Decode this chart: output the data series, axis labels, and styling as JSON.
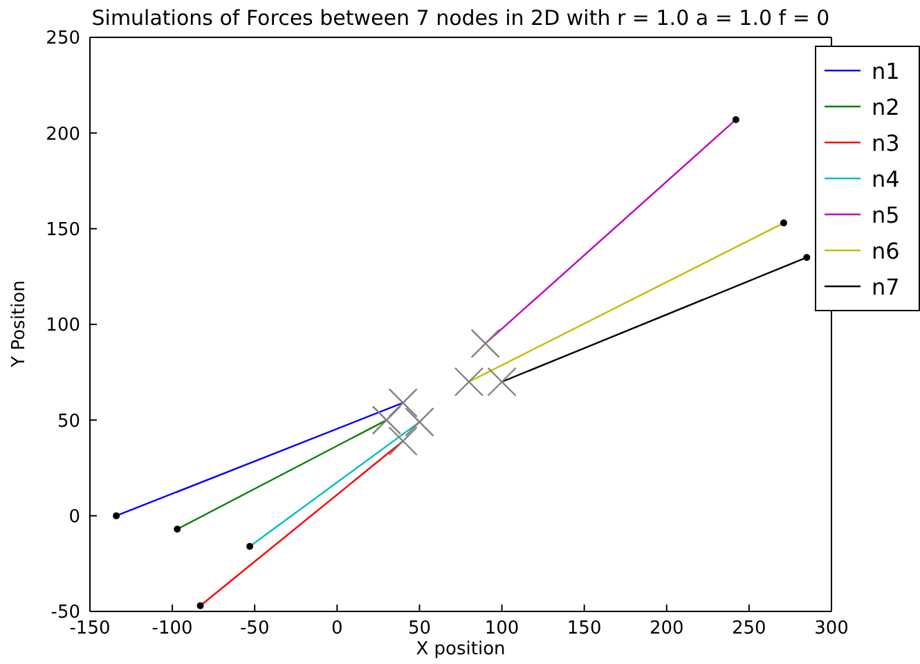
{
  "chart_data": {
    "type": "line",
    "title": "Simulations of Forces between 7 nodes in 2D with r = 1.0 a = 1.0 f = 0",
    "xlabel": "X position",
    "ylabel": "Y Position",
    "xlim": [
      -150,
      300
    ],
    "xticks": [
      -150,
      -100,
      -50,
      0,
      50,
      100,
      150,
      200,
      250,
      300
    ],
    "ylim": [
      -50,
      250
    ],
    "yticks": [
      -50,
      0,
      50,
      100,
      150,
      200,
      250
    ],
    "grid": false,
    "legend": "top right",
    "line_style": "solid",
    "series": [
      {
        "name": "n1",
        "color": "#0000ff",
        "x": [
          -134,
          40
        ],
        "values": [
          0,
          59
        ]
      },
      {
        "name": "n2",
        "color": "#008000",
        "x": [
          -97,
          30
        ],
        "values": [
          -7,
          50
        ]
      },
      {
        "name": "n3",
        "color": "#ff0000",
        "x": [
          -83,
          40
        ],
        "values": [
          -47,
          39
        ]
      },
      {
        "name": "n4",
        "color": "#00bfbf",
        "x": [
          -53,
          50
        ],
        "values": [
          -16,
          49
        ]
      },
      {
        "name": "n5",
        "color": "#bf00bf",
        "x": [
          242,
          90
        ],
        "values": [
          207,
          90
        ]
      },
      {
        "name": "n6",
        "color": "#bfbf00",
        "x": [
          271,
          80
        ],
        "values": [
          153,
          70
        ]
      },
      {
        "name": "n7",
        "color": "#000000",
        "x": [
          285,
          100
        ],
        "values": [
          135,
          70
        ]
      },
      {
        "type": "scatter",
        "marker": "circle",
        "color": "#000000",
        "x": [
          -134,
          -97,
          -83,
          -53,
          242,
          271,
          285
        ],
        "values": [
          0,
          -7,
          -47,
          -16,
          207,
          153,
          135
        ]
      },
      {
        "type": "scatter",
        "marker": "cross",
        "color": "#808080",
        "x": [
          40,
          30,
          40,
          50,
          90,
          80,
          100
        ],
        "values": [
          59,
          50,
          39,
          49,
          90,
          70,
          70
        ]
      }
    ]
  }
}
